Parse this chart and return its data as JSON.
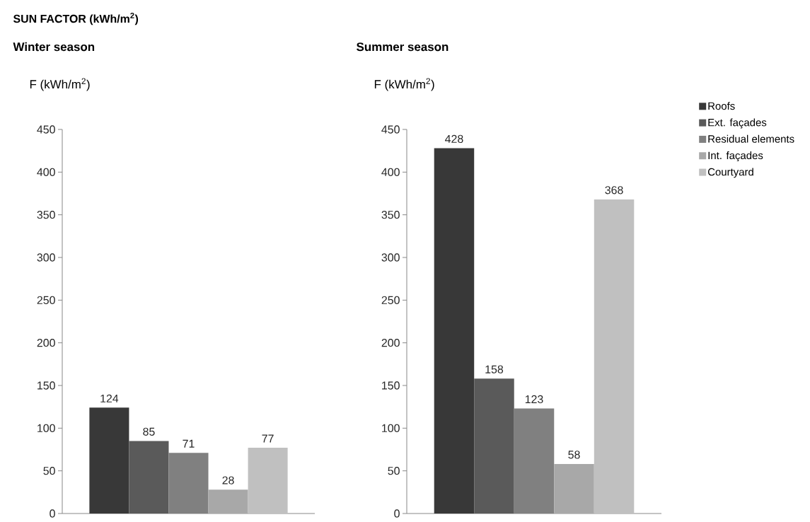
{
  "chart_data": [
    {
      "type": "bar",
      "title": "SUN FACTOR (kWh/m$^{2}$)",
      "subtitle": "Winter season",
      "ylabel": "F (kWh/m$^{2}$)",
      "categories": [
        null
      ],
      "series": [
        {
          "color": "#383838",
          "values": [
            124
          ]
        },
        {
          "color": "#5a5a5a",
          "values": [
            85
          ]
        },
        {
          "color": "#808080",
          "values": [
            71
          ]
        },
        {
          "color": "#a8a8a8",
          "values": [
            28
          ]
        },
        {
          "color": "#c0c0c0",
          "values": [
            77
          ]
        }
      ],
      "ylim": [
        0,
        450
      ],
      "yticks": [
        0,
        50,
        100,
        150,
        200,
        250,
        300,
        350,
        400,
        450
      ],
      "data_labels": true
    },
    {
      "type": "bar",
      "title": "Summer season",
      "ylabel": "F (kWh/m$^{2}$)",
      "categories": [
        null
      ],
      "series": [
        {
          "name": "Roofs",
          "color": "#383838",
          "values": [
            428
          ]
        },
        {
          "name": "Ext. façades",
          "color": "#5a5a5a",
          "values": [
            158
          ]
        },
        {
          "name": "Residual elements",
          "color": "#808080",
          "values": [
            123
          ]
        },
        {
          "name": "Int. façades",
          "color": "#a8a8a8",
          "values": [
            58
          ]
        },
        {
          "name": "Courtyard",
          "color": "#c0c0c0",
          "values": [
            368
          ]
        }
      ],
      "ylim": [
        0,
        450
      ],
      "yticks": [
        0,
        50,
        100,
        150,
        200,
        250,
        300,
        350,
        400,
        450
      ],
      "data_labels": true,
      "legend": "right"
    }
  ]
}
